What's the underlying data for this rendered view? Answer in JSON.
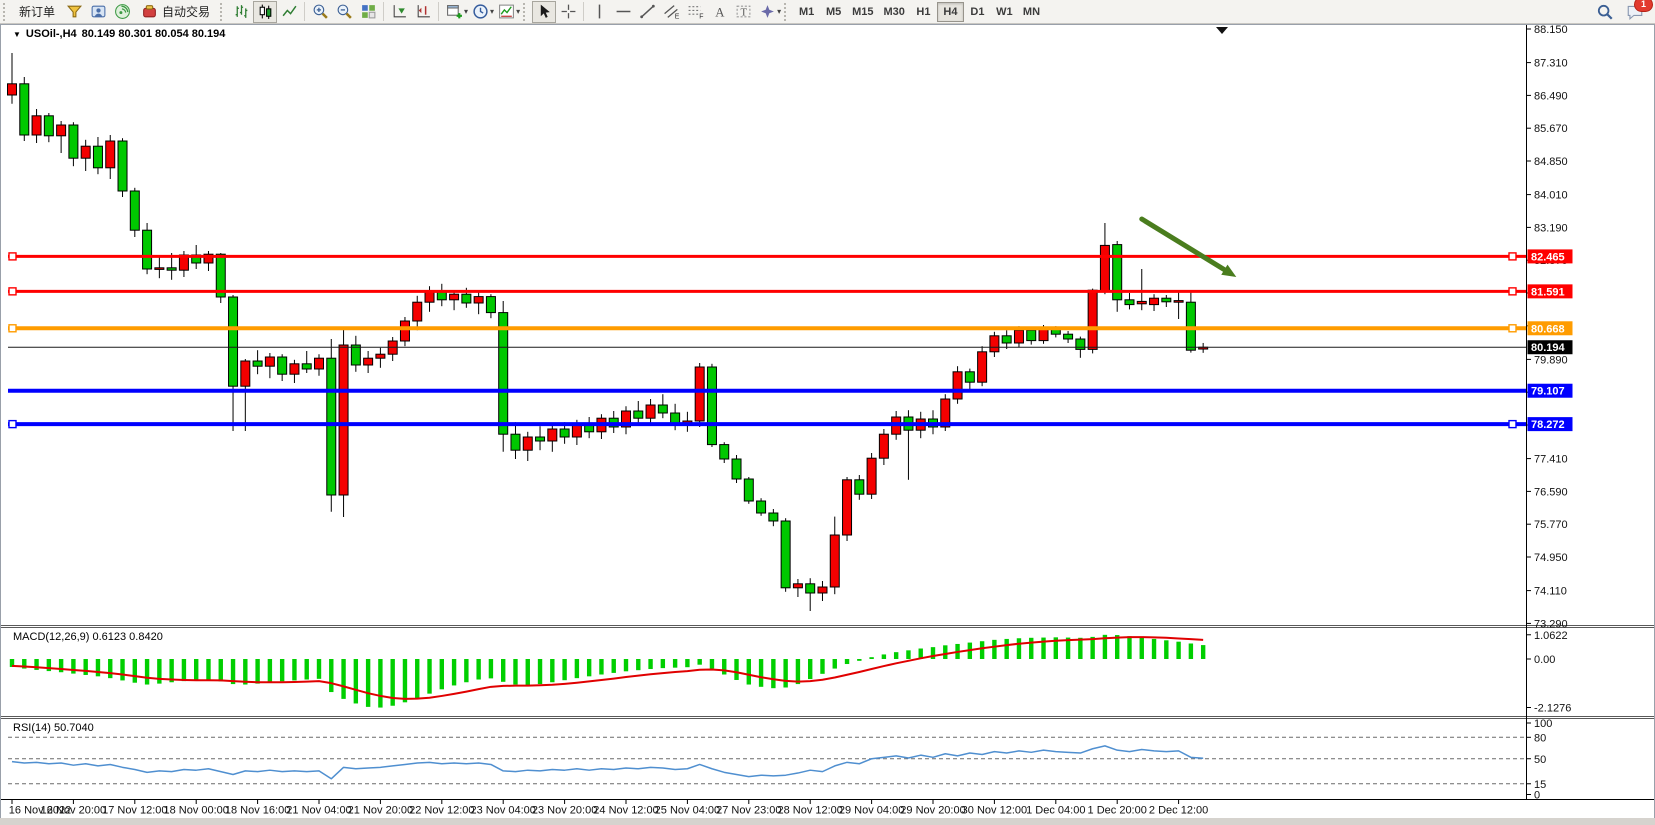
{
  "toolbar": {
    "new_order_label": "新订单",
    "auto_trading_label": "自动交易",
    "timeframes": [
      "M1",
      "M5",
      "M15",
      "M30",
      "H1",
      "H4",
      "D1",
      "W1",
      "MN"
    ],
    "active_timeframe": "H4",
    "notification_badge": "1"
  },
  "chart_data": {
    "type": "candlestick",
    "symbol_title": "USOil-,H4",
    "ohlc_title": "80.149 80.301 80.054 80.194",
    "colors": {
      "up": "#F40000",
      "down": "#00C800",
      "wick": "#000000",
      "macd_hist": "#00CF00",
      "macd_signal": "#E00000",
      "rsi_line": "#4F8FD0",
      "line_red": "#FF0000",
      "line_orange": "#FF9C00",
      "line_blue": "#0000FF",
      "price_line": "#1a1a1a",
      "arrow": "#4A7D1E"
    },
    "price_axis_ticks": [
      88.15,
      87.31,
      86.49,
      85.67,
      84.85,
      84.01,
      83.19,
      82.37,
      81.55,
      80.73,
      79.89,
      79.07,
      78.25,
      77.41,
      76.59,
      75.77,
      74.95,
      74.11,
      73.29
    ],
    "hlines": [
      {
        "price": 82.465,
        "label": "82.465",
        "color": "#FF0000",
        "width": 3,
        "handles": true
      },
      {
        "price": 81.591,
        "label": "81.591",
        "color": "#FF0000",
        "width": 3,
        "handles": true
      },
      {
        "price": 80.668,
        "label": "80.668",
        "color": "#FF9C00",
        "width": 4,
        "handles": true
      },
      {
        "price": 79.107,
        "label": "79.107",
        "color": "#0000FF",
        "width": 4,
        "handles": false
      },
      {
        "price": 78.272,
        "label": "78.272",
        "color": "#0000FF",
        "width": 4,
        "handles": true
      }
    ],
    "current_price": {
      "price": 80.194,
      "label": "80.194"
    },
    "trend_arrow": {
      "from_bar": 92,
      "from_price": 83.4,
      "to_bar": 99.7,
      "to_price": 81.95
    },
    "candles": [
      [
        86.5,
        87.55,
        86.28,
        86.78
      ],
      [
        86.78,
        86.95,
        85.35,
        85.5
      ],
      [
        85.5,
        86.15,
        85.3,
        85.98
      ],
      [
        85.98,
        86.05,
        85.32,
        85.48
      ],
      [
        85.48,
        85.85,
        85.05,
        85.75
      ],
      [
        85.75,
        85.82,
        84.72,
        84.92
      ],
      [
        84.92,
        85.38,
        84.6,
        85.22
      ],
      [
        85.22,
        85.45,
        84.52,
        84.68
      ],
      [
        84.68,
        85.5,
        84.4,
        85.35
      ],
      [
        85.35,
        85.42,
        83.95,
        84.1
      ],
      [
        84.1,
        84.18,
        82.95,
        83.12
      ],
      [
        83.12,
        83.3,
        82.02,
        82.15
      ],
      [
        82.15,
        82.45,
        81.92,
        82.18
      ],
      [
        82.18,
        82.55,
        81.88,
        82.12
      ],
      [
        82.12,
        82.6,
        81.95,
        82.5
      ],
      [
        82.5,
        82.75,
        82.15,
        82.3
      ],
      [
        82.3,
        82.6,
        82.1,
        82.52
      ],
      [
        82.52,
        82.55,
        81.3,
        81.45
      ],
      [
        81.45,
        81.5,
        78.1,
        79.22
      ],
      [
        79.22,
        79.9,
        78.1,
        79.85
      ],
      [
        79.85,
        80.12,
        79.52,
        79.72
      ],
      [
        79.72,
        80.05,
        79.42,
        79.95
      ],
      [
        79.95,
        80.02,
        79.35,
        79.52
      ],
      [
        79.52,
        79.88,
        79.3,
        79.78
      ],
      [
        79.78,
        80.1,
        79.55,
        79.65
      ],
      [
        79.65,
        80.02,
        79.48,
        79.92
      ],
      [
        79.92,
        80.4,
        76.08,
        76.5
      ],
      [
        76.5,
        80.65,
        75.95,
        80.25
      ],
      [
        80.25,
        80.48,
        79.58,
        79.75
      ],
      [
        79.75,
        80.1,
        79.55,
        79.92
      ],
      [
        79.92,
        80.18,
        79.68,
        80.02
      ],
      [
        80.02,
        80.45,
        79.85,
        80.35
      ],
      [
        80.35,
        80.95,
        80.22,
        80.85
      ],
      [
        80.85,
        81.48,
        80.62,
        81.32
      ],
      [
        81.32,
        81.72,
        81.08,
        81.58
      ],
      [
        81.58,
        81.78,
        81.22,
        81.38
      ],
      [
        81.38,
        81.62,
        81.12,
        81.52
      ],
      [
        81.52,
        81.68,
        81.18,
        81.3
      ],
      [
        81.3,
        81.58,
        81.02,
        81.46
      ],
      [
        81.46,
        81.52,
        80.92,
        81.06
      ],
      [
        81.06,
        81.35,
        77.58,
        78.02
      ],
      [
        78.02,
        78.32,
        77.4,
        77.62
      ],
      [
        77.62,
        78.08,
        77.35,
        77.95
      ],
      [
        77.95,
        78.22,
        77.62,
        77.85
      ],
      [
        77.85,
        78.28,
        77.58,
        78.15
      ],
      [
        78.15,
        78.32,
        77.78,
        77.95
      ],
      [
        77.95,
        78.38,
        77.75,
        78.25
      ],
      [
        78.25,
        78.45,
        77.92,
        78.08
      ],
      [
        78.08,
        78.52,
        77.9,
        78.42
      ],
      [
        78.42,
        78.6,
        78.05,
        78.2
      ],
      [
        78.2,
        78.72,
        78.02,
        78.6
      ],
      [
        78.6,
        78.85,
        78.28,
        78.42
      ],
      [
        78.42,
        78.9,
        78.25,
        78.75
      ],
      [
        78.75,
        79.02,
        78.42,
        78.55
      ],
      [
        78.55,
        78.78,
        78.12,
        78.28
      ],
      [
        78.28,
        78.58,
        78.08,
        78.35
      ],
      [
        78.35,
        79.8,
        78.2,
        79.7
      ],
      [
        79.7,
        79.78,
        77.7,
        77.76
      ],
      [
        77.76,
        77.82,
        77.3,
        77.4
      ],
      [
        77.4,
        77.5,
        76.8,
        76.9
      ],
      [
        76.9,
        76.95,
        76.28,
        76.35
      ],
      [
        76.35,
        76.42,
        75.98,
        76.05
      ],
      [
        76.05,
        76.15,
        75.72,
        75.85
      ],
      [
        75.85,
        75.92,
        74.08,
        74.18
      ],
      [
        74.18,
        74.4,
        73.95,
        74.28
      ],
      [
        74.28,
        74.42,
        73.6,
        74.05
      ],
      [
        74.05,
        74.35,
        73.85,
        74.2
      ],
      [
        74.2,
        75.96,
        74.02,
        75.5
      ],
      [
        75.5,
        76.95,
        75.35,
        76.88
      ],
      [
        76.88,
        77.0,
        76.38,
        76.52
      ],
      [
        76.52,
        77.55,
        76.4,
        77.42
      ],
      [
        77.42,
        78.15,
        77.25,
        78.02
      ],
      [
        78.02,
        78.6,
        77.88,
        78.45
      ],
      [
        78.45,
        78.62,
        76.88,
        78.12
      ],
      [
        78.12,
        78.58,
        77.92,
        78.4
      ],
      [
        78.4,
        78.62,
        78.02,
        78.2
      ],
      [
        78.2,
        79.02,
        78.1,
        78.9
      ],
      [
        78.9,
        79.72,
        78.78,
        79.58
      ],
      [
        79.58,
        79.66,
        79.15,
        79.32
      ],
      [
        79.32,
        80.22,
        79.22,
        80.08
      ],
      [
        80.08,
        80.58,
        79.95,
        80.48
      ],
      [
        80.48,
        80.62,
        80.15,
        80.3
      ],
      [
        80.3,
        80.72,
        80.2,
        80.62
      ],
      [
        80.62,
        80.7,
        80.26,
        80.36
      ],
      [
        80.36,
        80.75,
        80.28,
        80.66
      ],
      [
        80.66,
        80.72,
        80.44,
        80.52
      ],
      [
        80.52,
        80.6,
        80.3,
        80.4
      ],
      [
        80.4,
        80.46,
        79.93,
        80.14
      ],
      [
        80.14,
        81.66,
        80.04,
        81.62
      ],
      [
        81.61,
        83.3,
        81.52,
        82.74
      ],
      [
        82.76,
        82.85,
        81.08,
        81.38
      ],
      [
        81.38,
        81.55,
        81.14,
        81.26
      ],
      [
        81.28,
        82.15,
        81.12,
        81.34
      ],
      [
        81.26,
        81.52,
        81.1,
        81.42
      ],
      [
        81.42,
        81.5,
        81.2,
        81.33
      ],
      [
        81.34,
        81.62,
        80.9,
        81.36
      ],
      [
        81.32,
        81.6,
        80.06,
        80.12
      ],
      [
        80.149,
        80.301,
        80.054,
        80.194
      ]
    ],
    "x_labels": [
      {
        "i": 0,
        "t": "16 Nov 2022"
      },
      {
        "i": 5,
        "t": "16 Nov 20:00"
      },
      {
        "i": 10,
        "t": "17 Nov 12:00"
      },
      {
        "i": 15,
        "t": "18 Nov 00:00"
      },
      {
        "i": 20,
        "t": "18 Nov 16:00"
      },
      {
        "i": 25,
        "t": "21 Nov 04:00"
      },
      {
        "i": 30,
        "t": "21 Nov 20:00"
      },
      {
        "i": 35,
        "t": "22 Nov 12:00"
      },
      {
        "i": 40,
        "t": "23 Nov 04:00"
      },
      {
        "i": 45,
        "t": "23 Nov 20:00"
      },
      {
        "i": 50,
        "t": "24 Nov 12:00"
      },
      {
        "i": 55,
        "t": "25 Nov 04:00"
      },
      {
        "i": 60,
        "t": "27 Nov 23:00"
      },
      {
        "i": 65,
        "t": "28 Nov 12:00"
      },
      {
        "i": 70,
        "t": "29 Nov 04:00"
      },
      {
        "i": 75,
        "t": "29 Nov 20:00"
      },
      {
        "i": 80,
        "t": "30 Nov 12:00"
      },
      {
        "i": 85,
        "t": "1 Dec 04:00"
      },
      {
        "i": 90,
        "t": "1 Dec 20:00"
      },
      {
        "i": 95,
        "t": "2 Dec 12:00"
      }
    ],
    "macd": {
      "label": "MACD(12,26,9)",
      "current_values": "0.6123 0.8420",
      "axis_labels": [
        {
          "v": 1.0622,
          "t": "1.0622"
        },
        {
          "v": 0,
          "t": "0.00"
        },
        {
          "v": -2.1276,
          "t": "-2.1276"
        }
      ],
      "hist": [
        -0.35,
        -0.42,
        -0.48,
        -0.53,
        -0.58,
        -0.64,
        -0.7,
        -0.76,
        -0.84,
        -0.94,
        -1.04,
        -1.12,
        -1.08,
        -1.02,
        -0.97,
        -0.93,
        -0.92,
        -0.98,
        -1.1,
        -1.12,
        -1.08,
        -1.03,
        -0.98,
        -0.94,
        -0.9,
        -0.87,
        -1.45,
        -1.75,
        -1.95,
        -2.1,
        -2.13,
        -2.05,
        -1.9,
        -1.72,
        -1.52,
        -1.33,
        -1.16,
        -1.02,
        -0.9,
        -0.85,
        -1.0,
        -1.12,
        -1.15,
        -1.1,
        -1.02,
        -0.93,
        -0.84,
        -0.76,
        -0.68,
        -0.61,
        -0.54,
        -0.49,
        -0.44,
        -0.4,
        -0.38,
        -0.36,
        -0.25,
        -0.42,
        -0.68,
        -0.92,
        -1.12,
        -1.22,
        -1.28,
        -1.25,
        -1.1,
        -0.88,
        -0.65,
        -0.42,
        -0.22,
        -0.08,
        0.08,
        0.2,
        0.3,
        0.38,
        0.46,
        0.52,
        0.6,
        0.66,
        0.72,
        0.78,
        0.84,
        0.88,
        0.91,
        0.93,
        0.94,
        0.95,
        0.94,
        0.93,
        0.97,
        1.06,
        1.05,
        1.0,
        0.94,
        0.88,
        0.82,
        0.76,
        0.68,
        0.61
      ],
      "signal": [
        -0.3,
        -0.33,
        -0.36,
        -0.4,
        -0.44,
        -0.48,
        -0.52,
        -0.57,
        -0.62,
        -0.68,
        -0.75,
        -0.82,
        -0.87,
        -0.9,
        -0.92,
        -0.93,
        -0.93,
        -0.94,
        -0.97,
        -1.0,
        -1.02,
        -1.02,
        -1.02,
        -1.01,
        -0.99,
        -0.97,
        -1.06,
        -1.2,
        -1.35,
        -1.5,
        -1.62,
        -1.71,
        -1.75,
        -1.74,
        -1.7,
        -1.62,
        -1.53,
        -1.43,
        -1.32,
        -1.22,
        -1.18,
        -1.17,
        -1.17,
        -1.15,
        -1.13,
        -1.09,
        -1.04,
        -0.98,
        -0.92,
        -0.86,
        -0.79,
        -0.73,
        -0.67,
        -0.62,
        -0.57,
        -0.53,
        -0.47,
        -0.46,
        -0.5,
        -0.58,
        -0.69,
        -0.8,
        -0.89,
        -0.96,
        -0.99,
        -0.97,
        -0.91,
        -0.81,
        -0.69,
        -0.57,
        -0.44,
        -0.31,
        -0.19,
        -0.08,
        0.03,
        0.13,
        0.22,
        0.31,
        0.39,
        0.47,
        0.54,
        0.61,
        0.67,
        0.72,
        0.76,
        0.8,
        0.83,
        0.85,
        0.87,
        0.91,
        0.94,
        0.96,
        0.96,
        0.95,
        0.93,
        0.9,
        0.87,
        0.84
      ]
    },
    "rsi": {
      "label": "RSI(14)",
      "current_value": "50.7040",
      "levels": [
        {
          "v": 100,
          "t": "100",
          "dash": false
        },
        {
          "v": 80,
          "t": "80",
          "dash": true
        },
        {
          "v": 50,
          "t": "50",
          "dash": true
        },
        {
          "v": 15,
          "t": "15",
          "dash": true
        },
        {
          "v": 0,
          "t": "0",
          "dash": false
        }
      ],
      "values": [
        46,
        44,
        45,
        43,
        44,
        41,
        43,
        40,
        42,
        38,
        35,
        31,
        33,
        32,
        35,
        34,
        36,
        32,
        28,
        33,
        32,
        34,
        32,
        33,
        32,
        33,
        22,
        38,
        36,
        37,
        38,
        40,
        42,
        44,
        45,
        43,
        44,
        43,
        44,
        42,
        33,
        32,
        34,
        33,
        35,
        34,
        36,
        34,
        36,
        35,
        37,
        36,
        38,
        37,
        35,
        36,
        42,
        36,
        31,
        28,
        25,
        27,
        26,
        27,
        30,
        34,
        32,
        40,
        45,
        43,
        50,
        52,
        54,
        51,
        55,
        52,
        57,
        54,
        58,
        56,
        60,
        58,
        61,
        59,
        62,
        60,
        59,
        58,
        64,
        68,
        62,
        60,
        63,
        61,
        60,
        61,
        52,
        50.7
      ]
    }
  }
}
